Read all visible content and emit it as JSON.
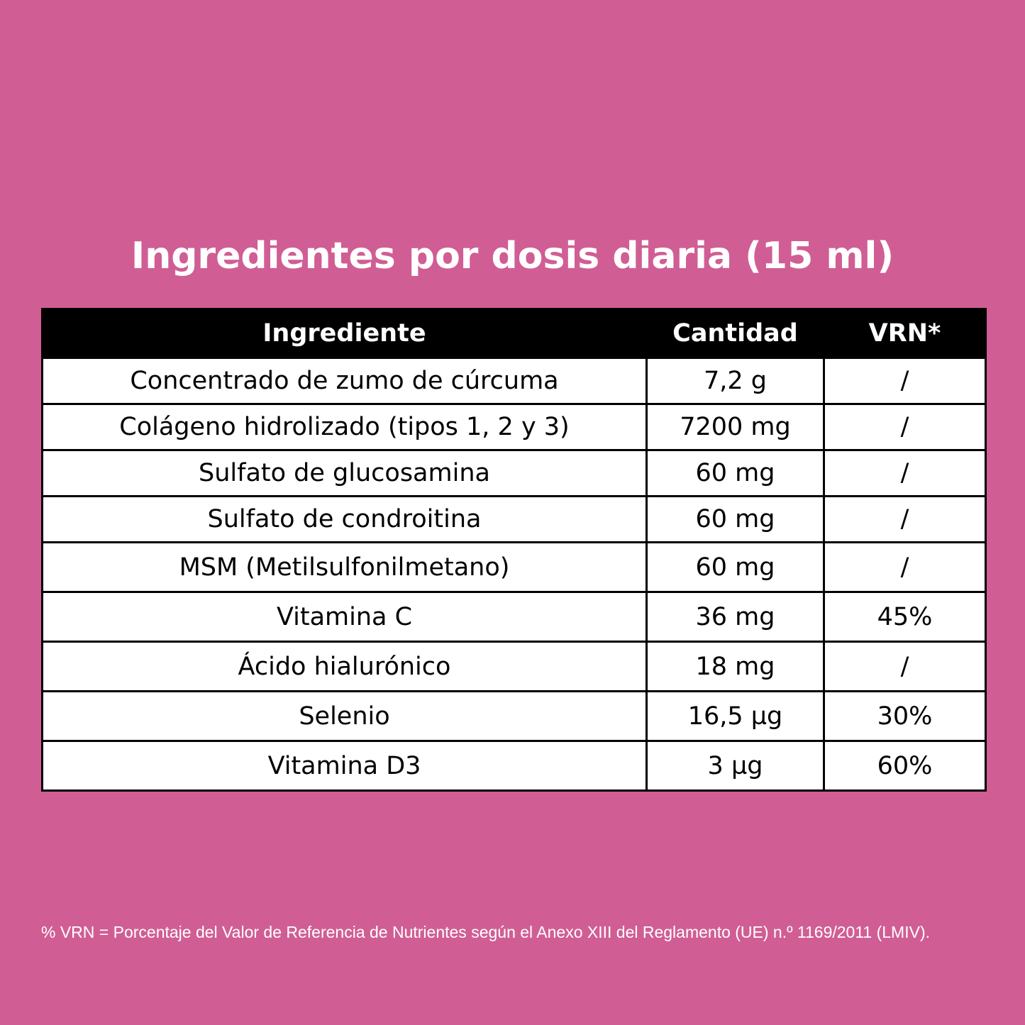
{
  "title": "Ingredientes por dosis diaria (15 ml)",
  "table": {
    "headers": [
      "Ingrediente",
      "Cantidad",
      "VRN*"
    ],
    "rows": [
      [
        "Concentrado de zumo de cúrcuma",
        "7,2 g",
        "/"
      ],
      [
        "Colágeno hidrolizado (tipos 1, 2 y 3)",
        "7200 mg",
        "/"
      ],
      [
        "Sulfato de glucosamina",
        "60 mg",
        "/"
      ],
      [
        "Sulfato de condroitina",
        "60 mg",
        "/"
      ],
      [
        "MSM (Metilsulfonilmetano)",
        "60 mg",
        "/"
      ],
      [
        "Vitamina C",
        "36 mg",
        "45%"
      ],
      [
        "Ácido hialurónico",
        "18 mg",
        "/"
      ],
      [
        "Selenio",
        "16,5 µg",
        "30%"
      ],
      [
        "Vitamina D3",
        "3 µg",
        "60%"
      ]
    ]
  },
  "footnote": "% VRN = Porcentaje del Valor de Referencia de Nutrientes según el Anexo XIII del Reglamento (UE) n.º 1169/2011 (LMIV).",
  "colors": {
    "background": "#d05e94",
    "header_background": "#000000",
    "cell_background": "#ffffff",
    "title_text": "#ffffff"
  }
}
